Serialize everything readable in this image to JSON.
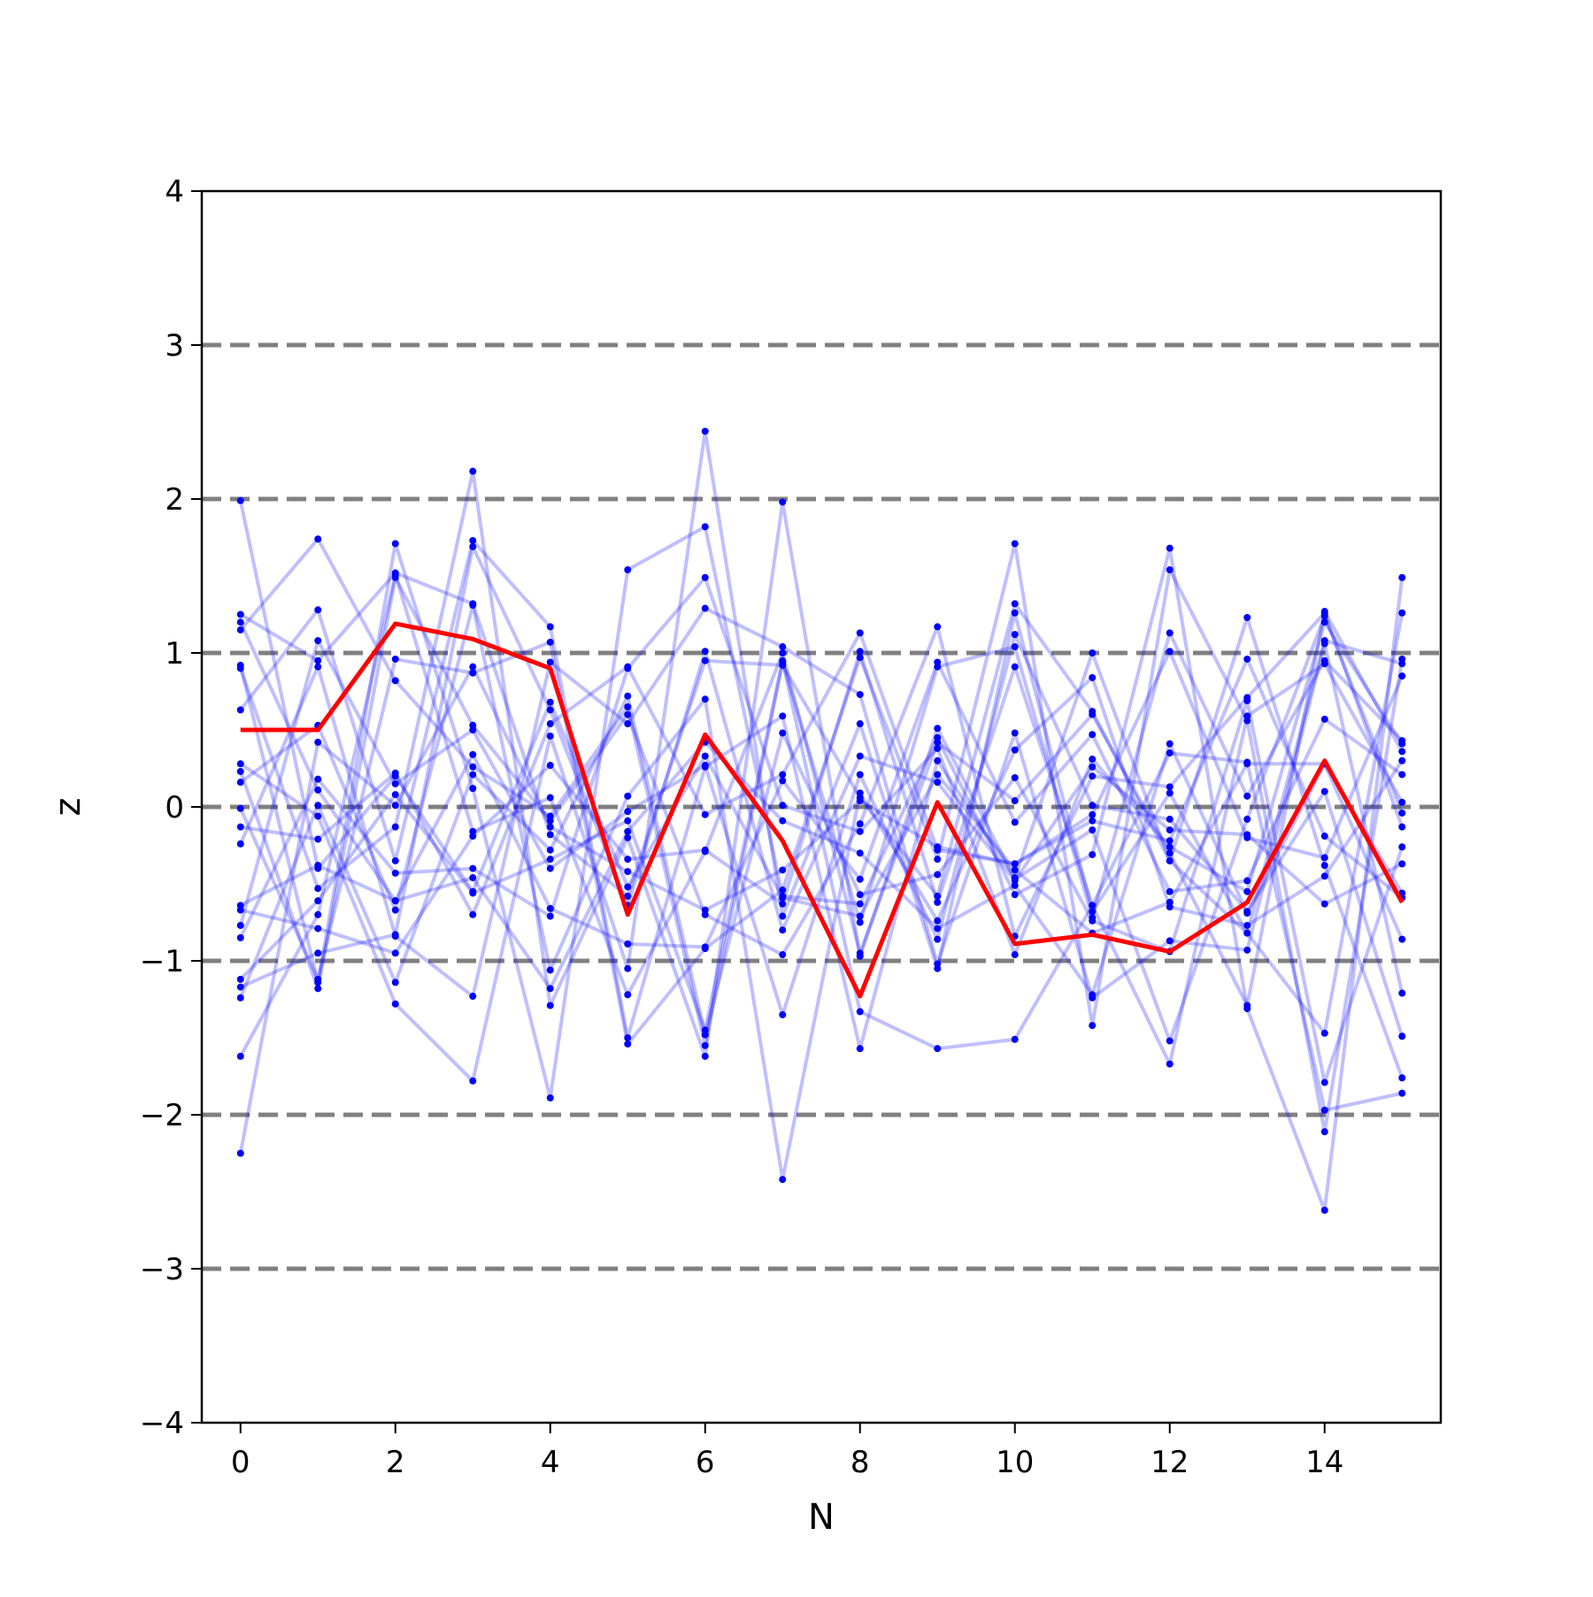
{
  "chart_data": {
    "type": "line",
    "xlabel": "N",
    "ylabel": "z",
    "xlim": [
      -0.5,
      15.5
    ],
    "ylim": [
      -4,
      4
    ],
    "x_ticks": [
      0,
      2,
      4,
      6,
      8,
      10,
      12,
      14
    ],
    "x_tick_labels": [
      "0",
      "2",
      "4",
      "6",
      "8",
      "10",
      "12",
      "14"
    ],
    "y_ticks": [
      -4,
      -3,
      -2,
      -1,
      0,
      1,
      2,
      3,
      4
    ],
    "y_tick_labels": [
      "−4",
      "−3",
      "−2",
      "−1",
      "0",
      "1",
      "2",
      "3",
      "4"
    ],
    "reference_lines": [
      -3,
      -2,
      -1,
      0,
      1,
      2,
      3
    ],
    "colors": {
      "reference": "#808080",
      "background_series": "#0000ff",
      "highlight_series": "#ff0000"
    },
    "x": [
      0,
      1,
      2,
      3,
      4,
      5,
      6,
      7,
      8,
      9,
      10,
      11,
      12,
      13,
      14,
      15
    ],
    "highlight_series": [
      0.5,
      0.5,
      1.19,
      1.09,
      0.9,
      -0.7,
      0.47,
      -0.22,
      -1.23,
      0.03,
      -0.89,
      -0.83,
      -0.94,
      -0.62,
      0.3,
      -0.62
    ],
    "background_series": [
      [
        1.99,
        -0.4,
        0.2,
        -0.55,
        0.68,
        -0.52,
        0.33,
        -0.59,
        -0.71,
        0.21,
        -0.41,
        -0.82,
        -0.62,
        0.28,
        0.28,
        -0.86
      ],
      [
        1.25,
        0.95,
        1.52,
        1.32,
        -0.18,
        -0.58,
        0.95,
        0.92,
        0.06,
        -0.58,
        1.32,
        0.62,
        -0.35,
        -0.82,
        1.08,
        0.93
      ],
      [
        1.15,
        1.74,
        0.82,
        0.26,
        -0.06,
        0.65,
        -1.55,
        0.94,
        -0.75,
        0.91,
        1.04,
        -0.72,
        1.13,
        0.07,
        0.95,
        0.43
      ],
      [
        0.92,
        -1.14,
        1.71,
        0.12,
        -1.89,
        1.54,
        1.82,
        -0.58,
        -0.63,
        0.45,
        -0.57,
        -0.31,
        1.68,
        -1.31,
        -2.62,
        1.49
      ],
      [
        0.9,
        -0.53,
        -0.13,
        2.18,
        -1.29,
        -0.2,
        -1.62,
        1.98,
        -0.97,
        0.51,
        -0.47,
        -0.15,
        -1.52,
        -0.08,
        1.24,
        -0.04
      ],
      [
        0.63,
        1.28,
        -0.35,
        1.73,
        1.17,
        -1.5,
        0.26,
        0.59,
        -1.57,
        0.3,
        -0.46,
        1.0,
        -0.35,
        1.23,
        -0.38,
        -1.76
      ],
      [
        0.28,
        -0.06,
        -1.28,
        -1.78,
        0.46,
        -1.05,
        2.44,
        -0.71,
        0.54,
        -1.05,
        1.26,
        -0.68,
        0.09,
        -0.82,
        -1.47,
        1.26
      ],
      [
        0.23,
        -1.18,
        1.49,
        0.53,
        -0.09,
        0.6,
        -0.7,
        -0.96,
        -0.11,
        1.17,
        -0.84,
        0.2,
        0.13,
        0.71,
        1.26,
        -0.13
      ],
      [
        0.16,
        0.53,
        -0.67,
        1.31,
        -1.06,
        0.07,
        0.7,
        -2.42,
        0.09,
        -0.74,
        0.37,
        0.84,
        -0.65,
        -0.77,
        -0.45,
        0.3
      ],
      [
        -0.01,
        -1.12,
        0.96,
        0.87,
        1.07,
        -1.54,
        -0.92,
        -0.54,
        0.97,
        -0.34,
        1.71,
        -1.42,
        1.54,
        0.56,
        -2.11,
        0.96
      ],
      [
        -0.13,
        -0.21,
        0.22,
        -0.7,
        0.54,
        0.91,
        -0.05,
        0.21,
        1.13,
        -0.28,
        -0.37,
        -0.09,
        -0.22,
        0.96,
        -0.19,
        -0.59
      ],
      [
        -0.24,
        0.91,
        -0.84,
        -1.23,
        0.94,
        0.54,
        1.29,
        1.04,
        0.73,
        -1.02,
        0.48,
        -1.24,
        -0.87,
        -0.93,
        1.06,
        -1.21
      ],
      [
        -0.64,
        -0.38,
        -0.61,
        0.34,
        -0.66,
        -0.89,
        -0.91,
        0.17,
        -0.47,
        0.94,
        -0.1,
        0.47,
        -0.55,
        -0.48,
        0.57,
        0.21
      ],
      [
        -0.67,
        -0.79,
        -0.95,
        -0.19,
        0.27,
        -0.34,
        -0.28,
        -0.63,
        1.01,
        -0.62,
        0.91,
        -0.64,
        0.35,
        0.29,
        -1.97,
        -1.86
      ],
      [
        -0.77,
        1.08,
        0.15,
        0.5,
        -0.4,
        -0.03,
        0.27,
        -1.35,
        0.21,
        -0.86,
        1.12,
        0.01,
        -0.08,
        -0.68,
        0.1,
        -1.49
      ],
      [
        -0.85,
        0.18,
        -0.43,
        -0.4,
        -0.71,
        0.9,
        1.49,
        0.01,
        -0.16,
        0.38,
        -0.96,
        0.31,
        -0.26,
        -0.55,
        1.2,
        0.41
      ],
      [
        -1.12,
        -0.61,
        0.08,
        -0.56,
        -0.34,
        -0.09,
        -1.45,
        0.95,
        -1.33,
        -1.57,
        -1.51,
        -0.64,
        -1.67,
        0.59,
        0.93,
        0.03
      ],
      [
        -1.17,
        -0.95,
        -0.83,
        1.69,
        0.63,
        -0.64,
        1.01,
        -0.8,
        0.33,
        0.16,
        -0.48,
        0.26,
        -0.15,
        -0.18,
        -0.63,
        -0.37
      ],
      [
        -1.24,
        0.01,
        -1.14,
        0.21,
        -0.28,
        0.72,
        -1.48,
        0.48,
        -0.57,
        -0.44,
        0.19,
        -0.74,
        -0.94,
        0.69,
        -1.79,
        -0.26
      ],
      [
        -1.62,
        -0.7,
        1.51,
        -0.16,
        0.06,
        -1.22,
        -0.29,
        1.0,
        -0.95,
        0.42,
        0.04,
        0.6,
        -0.3,
        -1.29,
        1.27,
        0.36
      ],
      [
        -2.25,
        0.42,
        0.01,
        0.91,
        -0.13,
        -0.42,
        -0.67,
        -0.41,
        0.04,
        -0.26,
        -0.37,
        -0.05,
        1.01,
        -0.2,
        -0.33,
        0.85
      ],
      [
        1.2,
        0.11,
        -0.61,
        -0.46,
        -1.18,
        -0.16,
        0.42,
        -0.09,
        -0.3,
        -0.79,
        -0.51,
        -1.22,
        0.41,
        -0.69,
        0.28,
        -0.56
      ]
    ]
  }
}
